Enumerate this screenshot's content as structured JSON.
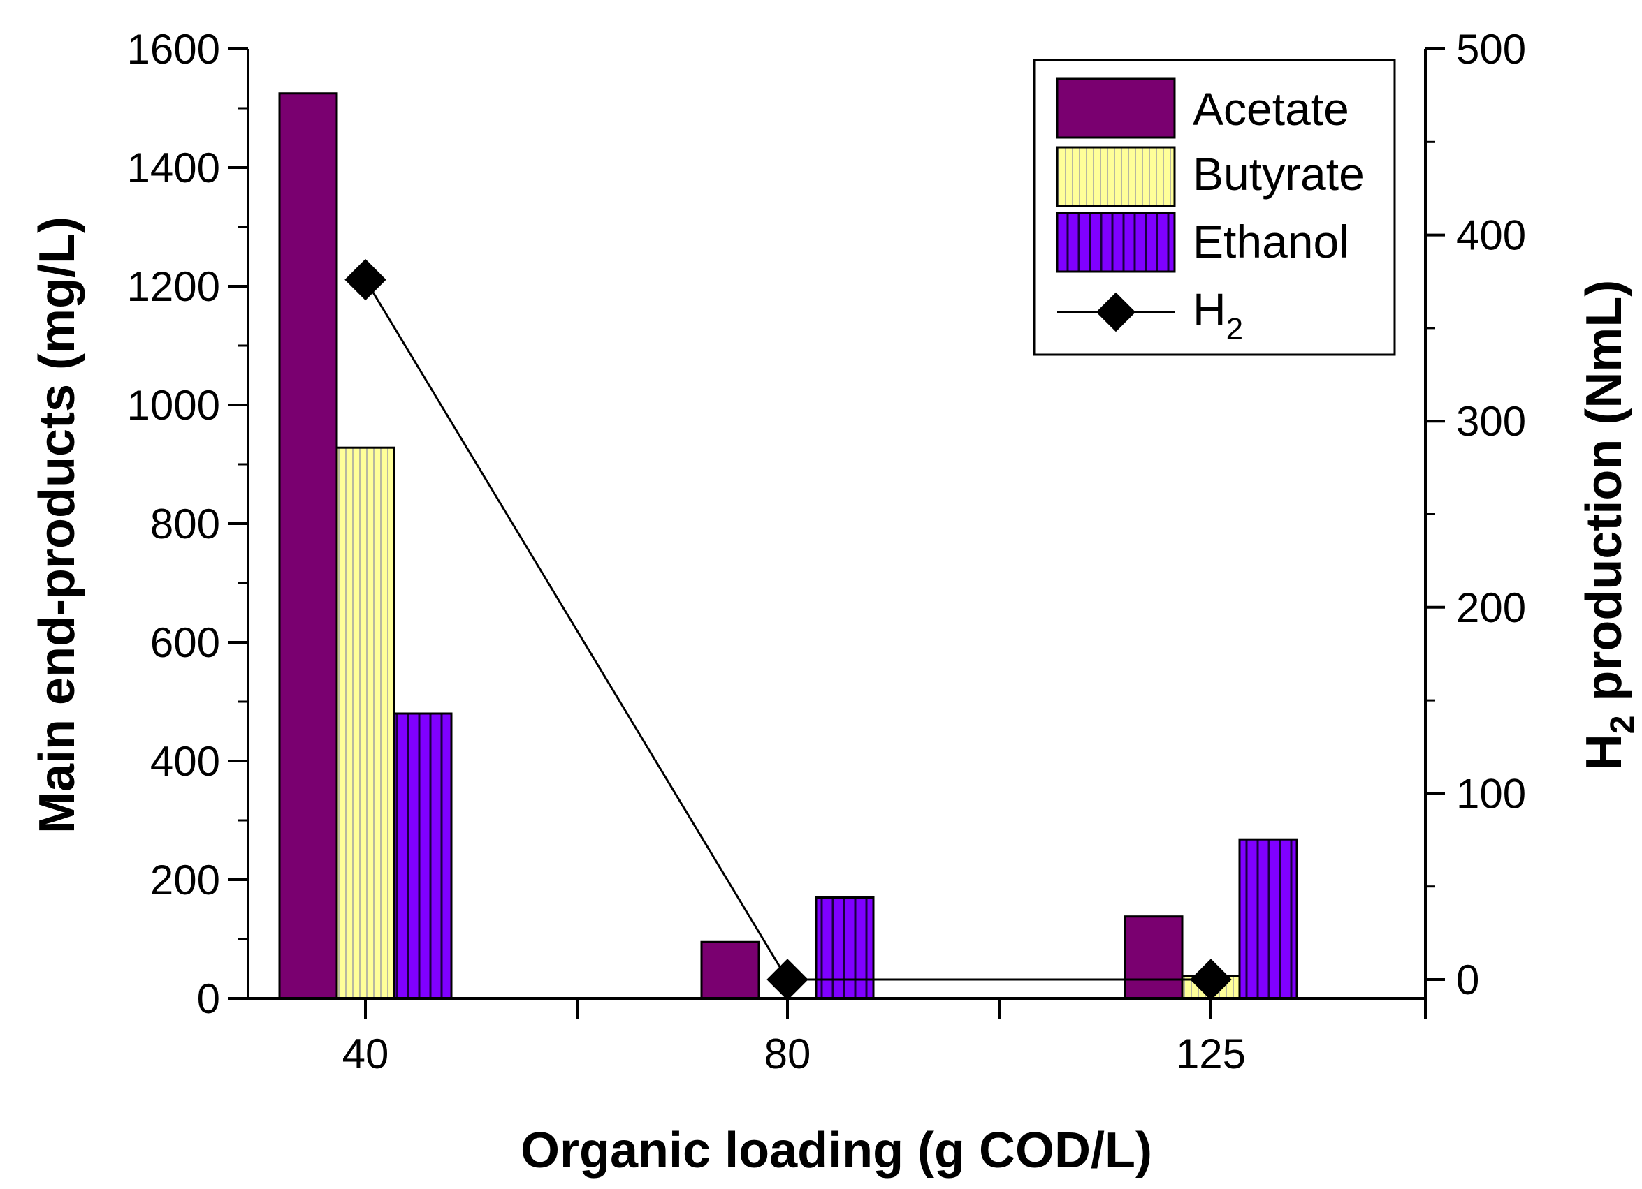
{
  "chart_data": {
    "type": "bar",
    "categories": [
      "40",
      "80",
      "125"
    ],
    "series": [
      {
        "name": "Acetate",
        "axis": "left",
        "color": "#7a0070",
        "pattern": "solid",
        "values": [
          1525,
          95,
          138
        ]
      },
      {
        "name": "Butyrate",
        "axis": "left",
        "color": "#ffff99",
        "pattern": "vertical-lines",
        "values": [
          928,
          0,
          38
        ]
      },
      {
        "name": "Ethanol",
        "axis": "left",
        "color": "#8000ff",
        "pattern": "vertical-lines",
        "values": [
          480,
          170,
          268
        ]
      },
      {
        "name": "H2",
        "axis": "right",
        "type": "line",
        "marker": "diamond",
        "color": "#000000",
        "values": [
          376,
          0,
          0
        ]
      }
    ],
    "xlabel": "Organic loading (g COD/L)",
    "ylabel_left": "Main end-products (mg/L)",
    "ylabel_right": {
      "main": "H",
      "sub": "2",
      "rest": " production (NmL)"
    },
    "ylim_left": [
      0,
      1600
    ],
    "ylim_right": [
      -10,
      500
    ],
    "yticks_left": [
      "0",
      "200",
      "400",
      "600",
      "800",
      "1000",
      "1200",
      "1400",
      "1600"
    ],
    "yticks_right": [
      "0",
      "100",
      "200",
      "300",
      "400",
      "500"
    ],
    "legend": {
      "position": "top-right",
      "items": [
        {
          "label": "Acetate",
          "sub": ""
        },
        {
          "label": "Butyrate",
          "sub": ""
        },
        {
          "label": "Ethanol",
          "sub": ""
        },
        {
          "label": "H",
          "sub": "2"
        }
      ]
    }
  }
}
